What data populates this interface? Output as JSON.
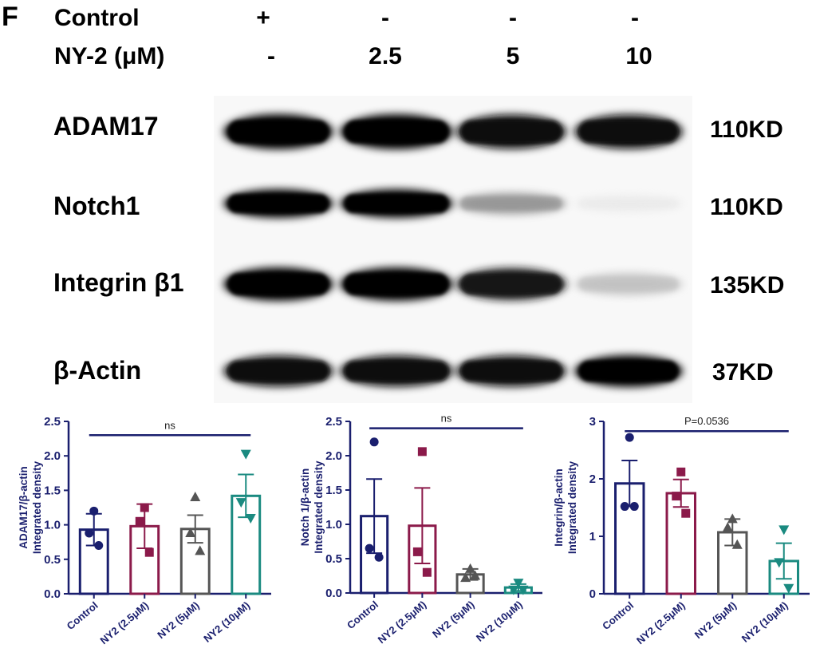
{
  "panel_letter": "F",
  "conditions": [
    {
      "label": "Control",
      "values": [
        "+",
        "-",
        "-",
        "-"
      ]
    },
    {
      "label": "NY-2 (μM)",
      "values": [
        "-",
        "2.5",
        "5",
        "10"
      ]
    }
  ],
  "blots": [
    {
      "protein": "ADAM17",
      "size": "110KD",
      "intensities": [
        1.0,
        1.0,
        0.95,
        0.95
      ]
    },
    {
      "protein": "Notch1",
      "size": "110KD",
      "intensities": [
        1.0,
        1.0,
        0.45,
        0.12
      ]
    },
    {
      "protein": "Integrin β1",
      "size": "135KD",
      "intensities": [
        1.0,
        1.0,
        0.9,
        0.3
      ]
    },
    {
      "protein": "β-Actin",
      "size": "37KD",
      "intensities": [
        0.95,
        0.95,
        0.95,
        1.0
      ]
    }
  ],
  "colors": {
    "control": "#1a1f6e",
    "ny2_2_5": "#8b1a4a",
    "ny2_5": "#555555",
    "ny2_10": "#1a8a80",
    "axis": "#1a1f6e"
  },
  "chart_data": [
    {
      "type": "bar",
      "ylabel": "ADAM17/β-actin\nIntegrated density",
      "categories": [
        "Control",
        "NY2 (2.5μM)",
        "NY2 (5μM)",
        "NY2 (10μM)"
      ],
      "values": [
        0.93,
        0.98,
        0.94,
        1.42
      ],
      "sem": [
        0.23,
        0.32,
        0.2,
        0.31
      ],
      "points": [
        [
          1.2,
          0.88,
          0.7
        ],
        [
          1.25,
          1.05,
          0.6
        ],
        [
          1.4,
          0.88,
          0.62
        ],
        [
          2.03,
          1.33,
          1.1
        ]
      ],
      "ylim": [
        0,
        2.5
      ],
      "yticks": [
        "0.0",
        "0.5",
        "1.0",
        "1.5",
        "2.0",
        "2.5"
      ],
      "tick_values": [
        0,
        0.5,
        1.0,
        1.5,
        2.0,
        2.5
      ],
      "annotation": "ns",
      "bracket": [
        0,
        3
      ],
      "bracket_y": 2.3
    },
    {
      "type": "bar",
      "ylabel": "Notch 1/β-actin\nIntegrated density",
      "categories": [
        "Control",
        "NY2 (2.5μM)",
        "NY2 (5μM)",
        "NY2 (10μM)"
      ],
      "values": [
        1.12,
        0.98,
        0.27,
        0.08
      ],
      "sem": [
        0.54,
        0.55,
        0.08,
        0.05
      ],
      "points": [
        [
          2.2,
          0.65,
          0.52
        ],
        [
          2.06,
          0.6,
          0.3
        ],
        [
          0.35,
          0.22,
          0.25
        ],
        [
          0.15,
          0.05,
          0.05
        ]
      ],
      "ylim": [
        0,
        2.5
      ],
      "yticks": [
        "0.0",
        "0.5",
        "1.0",
        "1.5",
        "2.0",
        "2.5"
      ],
      "tick_values": [
        0,
        0.5,
        1.0,
        1.5,
        2.0,
        2.5
      ],
      "annotation": "ns",
      "bracket": [
        0,
        3
      ],
      "bracket_y": 2.4
    },
    {
      "type": "bar",
      "ylabel": "Integrin/β-actin\nIntegrated density",
      "categories": [
        "Control",
        "NY2 (2.5μM)",
        "NY2 (5μM)",
        "NY2 (10μM)"
      ],
      "values": [
        1.92,
        1.75,
        1.07,
        0.57
      ],
      "sem": [
        0.4,
        0.24,
        0.23,
        0.31
      ],
      "points": [
        [
          2.72,
          1.52,
          1.52
        ],
        [
          2.12,
          1.7,
          1.4
        ],
        [
          1.3,
          1.15,
          0.85
        ],
        [
          1.12,
          0.55,
          0.1
        ]
      ],
      "ylim": [
        0,
        3
      ],
      "yticks": [
        "0",
        "1",
        "2",
        "3"
      ],
      "tick_values": [
        0,
        1,
        2,
        3
      ],
      "annotation": "P=0.0536",
      "bracket": [
        0,
        3
      ],
      "bracket_y": 2.83
    }
  ]
}
